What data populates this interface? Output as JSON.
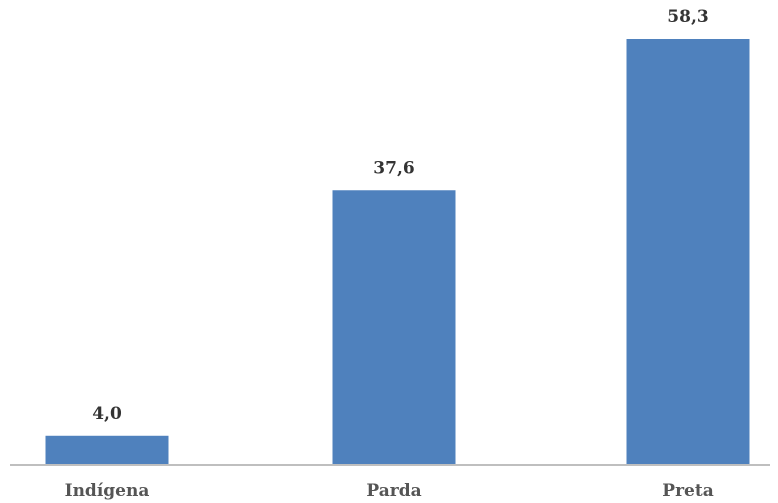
{
  "chart_data": {
    "type": "bar",
    "categories": [
      "Indígena",
      "Parda",
      "Preta"
    ],
    "values": [
      4.0,
      37.6,
      58.3
    ],
    "value_labels": [
      "4,0",
      "37,6",
      "58,3"
    ],
    "title": "",
    "xlabel": "",
    "ylabel": "",
    "ylim": [
      0,
      58.3
    ],
    "grid": false,
    "legend": "none",
    "colors": {
      "bar": "#4f81bd",
      "axis": "#bfbfbf"
    }
  }
}
